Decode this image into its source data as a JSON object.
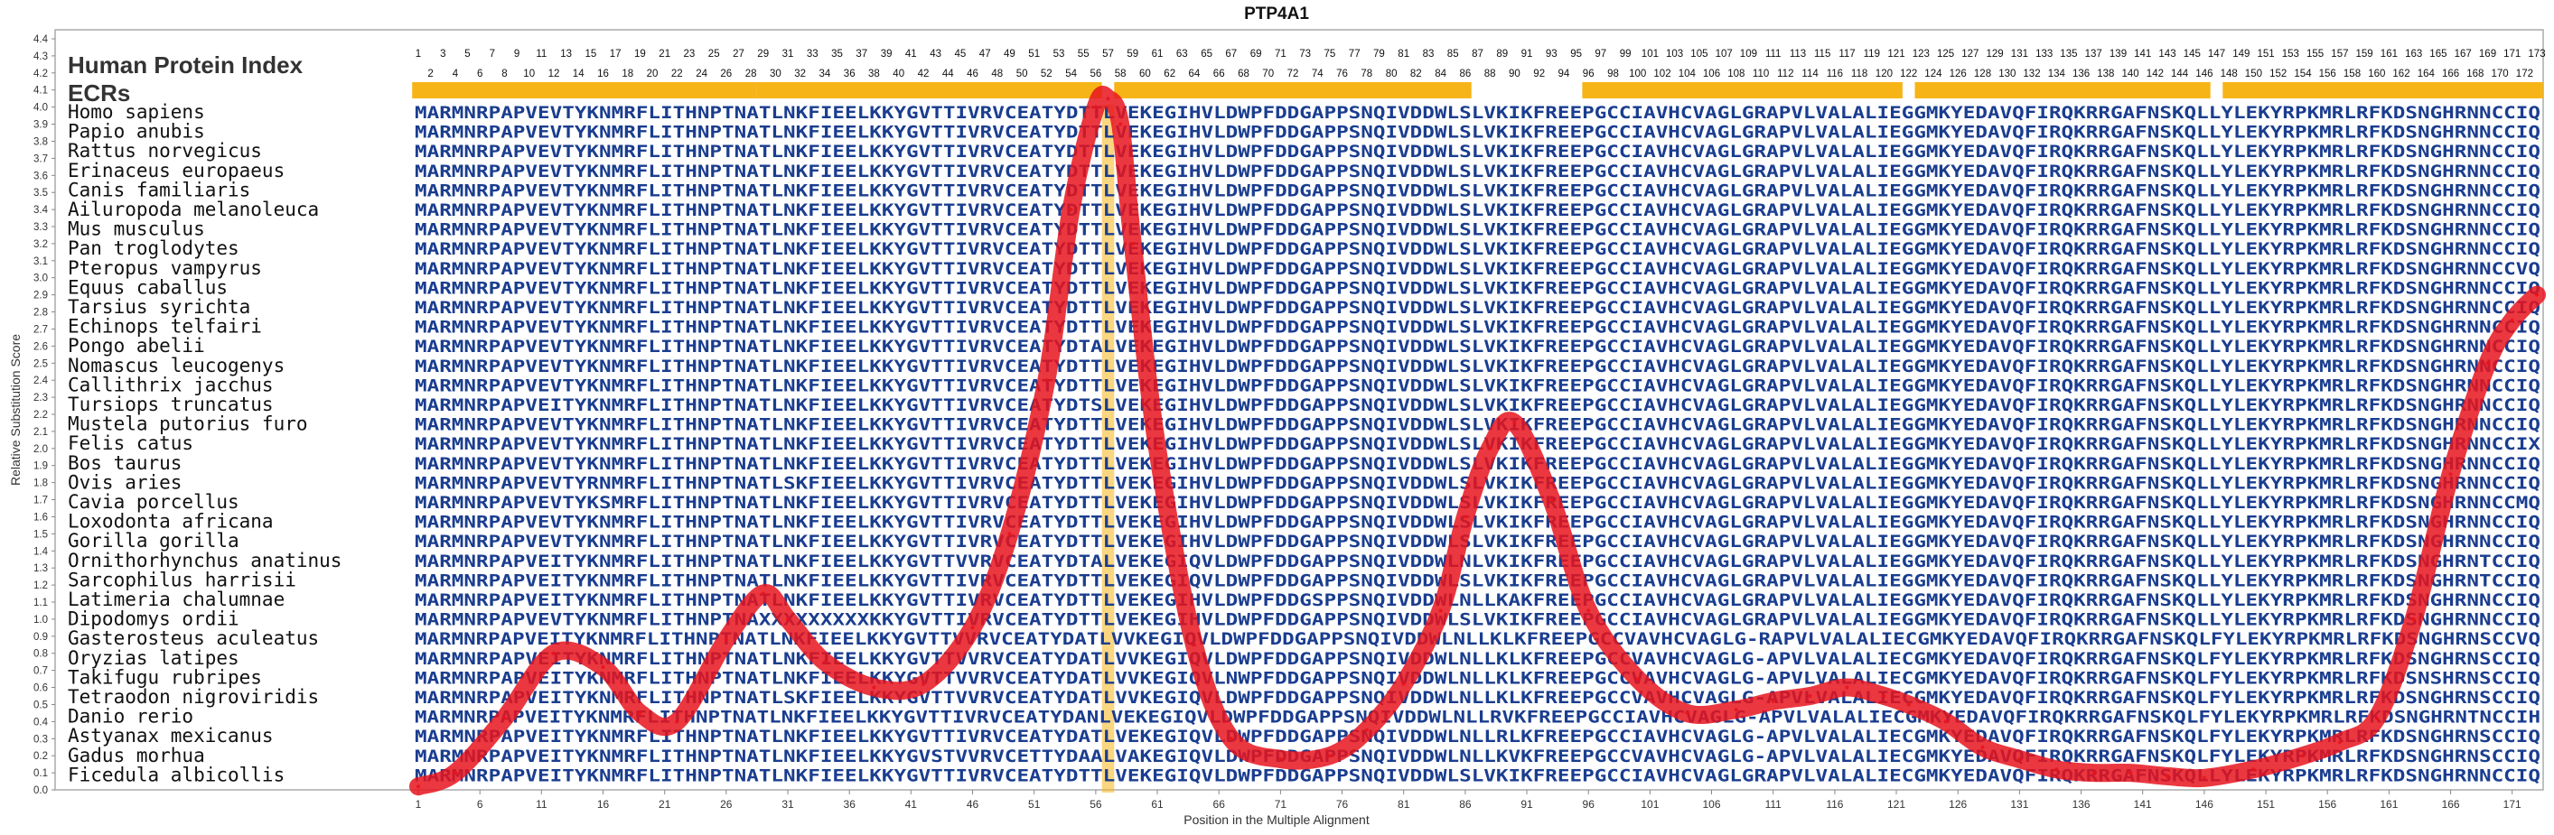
{
  "chart_data": {
    "type": "line",
    "title": "PTP4A1",
    "subtitle": "Human Protein Index",
    "ecr_label": "ECRs",
    "xlabel": "Position in the Multiple Alignment",
    "ylabel": "Relative Substitution Score",
    "xlim": [
      1,
      173
    ],
    "ylim": [
      0.0,
      4.4
    ],
    "y_ticks": [
      "0.0",
      "0.1",
      "0.2",
      "0.3",
      "0.4",
      "0.5",
      "0.6",
      "0.7",
      "0.8",
      "0.9",
      "1.0",
      "1.1",
      "1.2",
      "1.3",
      "1.4",
      "1.5",
      "1.6",
      "1.7",
      "1.8",
      "1.9",
      "2.0",
      "2.1",
      "2.2",
      "2.3",
      "2.4",
      "2.5",
      "2.6",
      "2.7",
      "2.8",
      "2.9",
      "3.0",
      "3.1",
      "3.2",
      "3.3",
      "3.4",
      "3.5",
      "3.6",
      "3.7",
      "3.8",
      "3.9",
      "4.0",
      "4.1",
      "4.2",
      "4.3",
      "4.4"
    ],
    "x_ticks": [
      "1",
      "6",
      "11",
      "16",
      "21",
      "26",
      "31",
      "36",
      "41",
      "46",
      "51",
      "56",
      "61",
      "66",
      "71",
      "76",
      "81",
      "86",
      "91",
      "96",
      "101",
      "106",
      "111",
      "116",
      "121",
      "126",
      "131",
      "136",
      "141",
      "146",
      "151",
      "156",
      "161",
      "166",
      "171"
    ],
    "ecr_segments": [
      [
        1,
        28
      ],
      [
        29,
        56
      ],
      [
        58,
        86
      ],
      [
        96,
        121
      ],
      [
        123,
        146
      ],
      [
        148,
        173
      ]
    ],
    "series": [
      {
        "color": "#e8141d",
        "x": [
          1,
          4,
          8,
          12,
          16,
          19,
          22,
          26,
          29,
          31,
          34,
          38,
          42,
          46,
          49,
          52,
          54,
          56,
          57,
          58,
          59,
          61,
          64,
          67,
          71,
          75,
          78,
          81,
          84,
          86,
          88,
          90,
          93,
          96,
          100,
          104,
          108,
          111,
          114,
          117,
          120,
          122,
          125,
          128,
          131,
          134,
          137,
          140,
          143,
          146,
          150,
          154,
          157,
          160,
          163,
          166,
          169,
          171,
          173
        ],
        "y": [
          0.02,
          0.1,
          0.42,
          0.8,
          0.72,
          0.45,
          0.4,
          0.88,
          1.15,
          1.0,
          0.75,
          0.6,
          0.62,
          0.95,
          1.5,
          2.4,
          3.4,
          4.0,
          4.05,
          3.9,
          3.2,
          2.0,
          0.85,
          0.3,
          0.18,
          0.2,
          0.35,
          0.62,
          1.05,
          1.6,
          2.0,
          2.15,
          1.7,
          1.05,
          0.65,
          0.45,
          0.47,
          0.52,
          0.55,
          0.6,
          0.55,
          0.5,
          0.4,
          0.25,
          0.18,
          0.12,
          0.1,
          0.1,
          0.08,
          0.07,
          0.12,
          0.2,
          0.28,
          0.42,
          1.0,
          1.85,
          2.5,
          2.75,
          2.9
        ]
      }
    ],
    "positions_top": [
      "1",
      "3",
      "5",
      "7",
      "9",
      "11",
      "13",
      "15",
      "17",
      "19",
      "21",
      "23",
      "25",
      "27",
      "29",
      "31",
      "33",
      "35",
      "37",
      "39",
      "41",
      "43",
      "45",
      "47",
      "49",
      "51",
      "53",
      "55",
      "57",
      "59",
      "61",
      "63",
      "65",
      "67",
      "69",
      "71",
      "73",
      "75",
      "77",
      "79",
      "81",
      "83",
      "85",
      "87",
      "89",
      "91",
      "93",
      "95",
      "97",
      "99",
      "101",
      "103",
      "105",
      "107",
      "109",
      "111",
      "113",
      "115",
      "117",
      "119",
      "121",
      "123",
      "125",
      "127",
      "129",
      "131",
      "133",
      "135",
      "137",
      "139",
      "141",
      "143",
      "145",
      "147",
      "149",
      "151",
      "153",
      "155",
      "157",
      "159",
      "161",
      "163",
      "165",
      "167",
      "169",
      "171",
      "173"
    ],
    "positions_bottom": [
      "2",
      "4",
      "6",
      "8",
      "10",
      "12",
      "14",
      "16",
      "18",
      "20",
      "22",
      "24",
      "26",
      "28",
      "30",
      "32",
      "34",
      "36",
      "38",
      "40",
      "42",
      "44",
      "46",
      "48",
      "50",
      "52",
      "54",
      "56",
      "58",
      "60",
      "62",
      "64",
      "66",
      "68",
      "70",
      "72",
      "74",
      "76",
      "78",
      "80",
      "82",
      "84",
      "86",
      "88",
      "90",
      "92",
      "94",
      "96",
      "98",
      "100",
      "102",
      "104",
      "106",
      "108",
      "110",
      "112",
      "114",
      "116",
      "118",
      "120",
      "122",
      "124",
      "126",
      "128",
      "130",
      "132",
      "134",
      "136",
      "138",
      "140",
      "142",
      "144",
      "146",
      "148",
      "150",
      "152",
      "154",
      "156",
      "158",
      "160",
      "162",
      "164",
      "166",
      "168",
      "170",
      "172"
    ],
    "alignment": [
      {
        "species": "Homo sapiens",
        "sequence": "MARMNRPAPVEVTYKNMRFLITHNPTNATLNKFIEELKKYGVTTIVRVCEATYDTTLVEKEGIHVLDWPFDDGAPPSNQIVDDWLSLVKIKFREEPGCCIAVHCVAGLGRAPVLVALALIEGGMKYEDAVQFIRQKRRGAFNSKQLLYLEKYRPKMRLRFKDSNGHRNNCCIQ"
      },
      {
        "species": "Papio anubis",
        "sequence": "MARMNRPAPVEVTYKNMRFLITHNPTNATLNKFIEELKKYGVTTIVRVCEATYDTTLVEKEGIHVLDWPFDDGAPPSNQIVDDWLSLVKIKFREEPGCCIAVHCVAGLGRAPVLVALALIEGGMKYEDAVQFIRQKRRGAFNSKQLLYLEKYRPKMRLRFKDSNGHRNNCCIQ"
      },
      {
        "species": "Rattus norvegicus",
        "sequence": "MARMNRPAPVEVTYKNMRFLITHNPTNATLNKFIEELKKYGVTTIVRVCEATYDTTLVEKEGIHVLDWPFDDGAPPSNQIVDDWLSLVKIKFREEPGCCIAVHCVAGLGRAPVLVALALIEGGMKYEDAVQFIRQKRRGAFNSKQLLYLEKYRPKMRLRFKDSNGHRNNCCIQ"
      },
      {
        "species": "Erinaceus europaeus",
        "sequence": "MARMNRPAPVEVTYKNMRFLITHNPTNATLNKFIEELKKYGVTTIVRVCEATYDTTLVEKEGIHVLDWPFDDGAPPSNQIVDDWLSLVKIKFREEPGCCIAVHCVAGLGRAPVLVALALIEGGMKYEDAVQFIRQKRRGAFNSKQLLYLEKYRPKMRLRFKDSNGHRNNCCIQ"
      },
      {
        "species": "Canis familiaris",
        "sequence": "MARMNRPAPVEVTYKNMRFLITHNPTNATLNKFIEELKKYGVTTIVRVCEATYDTTLVEKEGIHVLDWPFDDGAPPSNQIVDDWLSLVKIKFREEPGCCIAVHCVAGLGRAPVLVALALIEGGMKYEDAVQFIRQKRRGAFNSKQLLYLEKYRPKMRLRFKDSNGHRNNCCIQ"
      },
      {
        "species": "Ailuropoda melanoleuca",
        "sequence": "MARMNRPAPVEVTYKNMRFLITHNPTNATLNKFIEELKKYGVTTIVRVCEATYDTTLVEKEGIHVLDWPFDDGAPPSNQIVDDWLSLVKIKFREEPGCCIAVHCVAGLGRAPVLVALALIEGGMKYEDAVQFIRQKRRGAFNSKQLLYLEKYRPKMRLRFKDSNGHRNNCCIQ"
      },
      {
        "species": "Mus musculus",
        "sequence": "MARMNRPAPVEVTYKNMRFLITHNPTNATLNKFIEELKKYGVTTIVRVCEATYDTTLVEKEGIHVLDWPFDDGAPPSNQIVDDWLSLVKIKFREEPGCCIAVHCVAGLGRAPVLVALALIEGGMKYEDAVQFIRQKRRGAFNSKQLLYLEKYRPKMRLRFKDSNGHRNNCCIQ"
      },
      {
        "species": "Pan troglodytes",
        "sequence": "MARMNRPAPVEVTYKNMRFLITHNPTNATLNKFIEELKKYGVTTIVRVCEATYDTTLVEKEGIHVLDWPFDDGAPPSNQIVDDWLSLVKIKFREEPGCCIAVHCVAGLGRAPVLVALALIEGGMKYEDAVQFIRQKRRGAFNSKQLLYLEKYRPKMRLRFKDSNGHRNNCCIQ"
      },
      {
        "species": "Pteropus vampyrus",
        "sequence": "MARMNRPAPVEVTYKNMRFLITHNPTNATLNKFIEELKKYGVTTIVRVCEATYDTTLVEKEGIHVLDWPFDDGAPPSNQIVDDWLSLVKIKFREEPGCCIAVHCVAGLGRAPVLVALALIEGGMKYEDAVQFIRQKRRGAFNSKQLLYLEKYRPKMRLRFKDSNGHRNNCCVQ"
      },
      {
        "species": "Equus caballus",
        "sequence": "MARMNRPAPVEVTYKNMRFLITHNPTNATLNKFIEELKKYGVTTIVRVCEATYDTTLVEKEGIHVLDWPFDDGAPPSNQIVDDWLSLVKIKFREEPGCCIAVHCVAGLGRAPVLVALALIEGGMKYEDAVQFIRQKRRGAFNSKQLLYLEKYRPKMRLRFKDSNGHRNNCCIQ"
      },
      {
        "species": "Tarsius syrichta",
        "sequence": "MARMNRPAPVEVTYKNMRFLITHNPTNATLNKFIEELKKYGVTTIVRVCEATYDTTLVEKEGIHVLDWPFDDGAPPSNQIVDDWLSLVKIKFREEPGCCIAVHCVAGLGRAPVLVALALIEGGMKYEDAVQFIRQKRRGAFNSKQLLYLEKYRPKMRLRFKDSNGHRNNCCIQ"
      },
      {
        "species": "Echinops telfairi",
        "sequence": "MARMNRPAPVEVTYKNMRFLITHNPTNATLNKFIEELKKYGVTTIVRVCEATYDTTLVEKEGIHVLDWPFDDGAPPSNQIVDDWLSLVKIKFREEPGCCIAVHCVAGLGRAPVLVALALIEGGMKYEDAVQFIRQKRRGAFNSKQLLYLEKYRPKMRLRFKDSNGHRNNCCIQ"
      },
      {
        "species": "Pongo abelii",
        "sequence": "MARMNRPAPVEVTYKNMRFLITHNPTNATLNKFIEELKKYGVTTIVRVCEATYDTALVEKEGIHVLDWPFDDGAPPSNQIVDDWLSLVKIKFREEPGCCIAVHCVAGLGRAPVLVALALIEGGMKYEDAVQFIRQKRRGAFNSKQLLYLEKYRPKMRLRFKDSNGHRNNCCIQ"
      },
      {
        "species": "Nomascus leucogenys",
        "sequence": "MARMNRPAPVEVTYKNMRFLITHNPTNATLNKFIEELKKYGVTTIVRVCEATYDTTLVEKEGIHVLDWPFDDGAPPSNQIVDDWLSLVKIKFREEPGCCIAVHCVAGLGRAPVLVALALIEGGMKYEDAVQFIRQKRRGAFNSKQLLYLEKYRPKMRLRFKDSNGHRNNCCIQ"
      },
      {
        "species": "Callithrix jacchus",
        "sequence": "MARMNRPAPVEVTYKNMRFLITHNPTNATLNKFIEELKKYGVTTIVRVCEATYDTTLVEKEGIHVLDWPFDDGAPPSNQIVDDWLSLVKIKFREEPGCCIAVHCVAGLGRAPVLVALALIEGGMKYEDAVQFIRQKRRGAFNSKQLLYLEKYRPKMRLRFKDSNGHRNNCCIQ"
      },
      {
        "species": "Tursiops truncatus",
        "sequence": "MARMNRPAPVEITYKNMRFLITHNPTNATLNKFIEELKKYGVTTIVRVCEATYDTSLVEKEGIHVLDWPFDDGAPPSNQIVDDWLSLVKIKFREEPGCCIAVHCVAGLGRAPVLVALALIEGGMKYEDAVQFIRQKRRGAFNSKQLLYLEKYRPKMRLRFKDSNGHRNNCCIQ"
      },
      {
        "species": "Mustela putorius furo",
        "sequence": "MARMNRPAPVEVTYKNMRFLITHNPTNATLNKFIEELKKYGVTTIVRVCEATYDTTLVEKEGIHVLDWPFDDGAPPSNQIVDDWLSLVKIKFREEPGCCIAVHCVAGLGRAPVLVALALIEGGMKYEDAVQFIRQKRRGAFNSKQLLYLEKYRPKMRLRFKDSNGHRNNCCIQ"
      },
      {
        "species": "Felis catus",
        "sequence": "MARMNRPAPVEVTYKNMRFLITHNPTNATLNKFIEELKKYGVTTIVRVCEATYDTTLVEKEGIHVLDWPFDDGAPPSNQIVDDWLSLVKIKFREEPGCCIAVHCVAGLGRAPVLVALALIEGGMKYEDAVQFIRQKRRGAFNSKQLLYLEKYRPKMRLRFKDSNGHRNNCCIX"
      },
      {
        "species": "Bos taurus",
        "sequence": "MARMNRPAPVEVTYKNMRFLITHNPTNATLNKFIEELKKYGVTTIVRVCEATYDTTLVEKEGIHVLDWPFDDGAPPSNQIVDDWLSLVKIKFREEPGCCIAVHCVAGLGRAPVLVALALIEGGMKYEDAVQFIRQKRRGAFNSKQLLYLEKYRPKMRLRFKDSNGHRNNCCIQ"
      },
      {
        "species": "Ovis aries",
        "sequence": "MARMNRPAPVEVTYRNMRFLITHNPTNATLSKFIEELKKYGVTTIVRVCEATYDTTLVEKEGIHVLDWPFDDGAPPSNQIVDDWLSLVKIKFREEPGCCIAVHCVAGLGRAPVLVALALIEGGMKYEDAVQFIRQKRRGAFNSKQLLYLEKYRPKMRLRFKDSNGHRNNCCIQ"
      },
      {
        "species": "Cavia porcellus",
        "sequence": "MARMNRPAPVEVTYKSMRFLITHNPTNATLNKFIEELKKYGVTTIVRVCEATYDTTLVEKEGIHVLDWPFDDGAPPSNQIVDDWLSLVKIKFREEPGCCIAVHCVAGLGRAPVLVALALIEGGMKYEDAVQFIRQKRRGAFNSKQLLYLEKYRPKMRLRFKDSNGHRNNCCMQ"
      },
      {
        "species": "Loxodonta africana",
        "sequence": "MARMNRPAPVEVTYKNMRFLITHNPTNATLNKFIEELKKYGVTTIVRVCEATYDTTLVEKEGIHVLDWPFDDGAPPSNQIVDDWLSLVKIKFREEPGCCIAVHCVAGLGRAPVLVALALIEGGMKYEDAVQFIRQKRRGAFNSKQLLYLEKYRPKMRLRFKDSNGHRNNCCIQ"
      },
      {
        "species": "Gorilla gorilla",
        "sequence": "MARMNRPAPVEVTYKNMRFLITHNPTNATLNKFIEELKKYGVTTIVRVCEATYDTTLVEKEGIHVLDWPFDDGAPPSNQIVDDWLSLVKIKFREEPGCCIAVHCVAGLGRAPVLVALALIEGGMKYEDAVQFIRQKRRGAFNSKQLLYLEKYRPKMRLRFKDSNGHRNNCCIQ"
      },
      {
        "species": "Ornithorhynchus anatinus",
        "sequence": "MARMNRPAPVEITYKNMRFLITHNPTNATLNKFIEELKKYGVTTVVRVCEATYDTALVEKEGIQVLDWPFDDGAPPSNQIVDDWLNLVKIKFREEPGCCIAVHCVAGLGRAPVLVALALIEGGMKYEDAVQFIRQKRRGAFNSKQLLYLEKYRPKMRLRFKDSNGHRNTCCIQ"
      },
      {
        "species": "Sarcophilus harrisii",
        "sequence": "MARMNRPAPVEITYKNMRFLITHNPTNATLNKFIEELKKYGVTTIVRVCEATYDTTLVEKEGIQVLDWPFDDGAPPSNQIVDDWLSLVKIKFREEPGCCIAVHCVAGLGRAPVLVALALIEGGMKYEDAVQFIRQKRRGAFNSKQLLYLEKYRPKMRLRFKDSNGHRNTCCIQ"
      },
      {
        "species": "Latimeria chalumnae",
        "sequence": "MARMNRPAPVEITYKNMRFLITHNPTNATLNKFIEELKKYGVTTIVRVCEATYDTTLVEKEGIHVLDWPFDDGSPPSNQIVDDWLNLLKAKFREEPGCCIAVHCVAGLGRAPVLVALALIEGGMKYEDAVQFIRQKRRGAFNSKQLLYLEKYRPKMRLRFKDSNGHRNNCCIQ"
      },
      {
        "species": "Dipodomys ordii",
        "sequence": "MARMNRPAPVEVTYKNMRFLITHNPTNAXXXXXXXXXKKYGVTTIVRVCEATYDTTLVEKEGIHVLDWPFDDGAPPSNQIVDDWLSLVKIKFREEPGCCIAVHCVAGLGRAPVLVALALIEGGMKYEDAVQFIRQKRRGAFNSKQLLYLEKYRPKMRLRFKDSNGHRNNCCIQ"
      },
      {
        "species": "Gasterosteus aculeatus",
        "sequence": "MARMNRPAPVEITYKNMRFLITHNPTNATLNKFIEELKKYGVTTVVRVCEATYDATLVVKEGIQVLDWPFDDGAPPSNQIVDDWLNLLKLKFREEPGCCVAVHCVAGLG-RAPVLVALALIECGMKYEDAVQFIRQKRRGAFNSKQLFYLEKYRPKMRLRFKDSNGHRNSCCVQ"
      },
      {
        "species": "Oryzias latipes",
        "sequence": "MARMNRPAPVEITYKNMRFLITHNPTNATLNKFIEELKKYGVTTVVRVCEATYDATLVVKEGIQVLDWPFDDGAPPSNQIVDDWLNLLKLKFREEPGCCVAVHCVAGLG-APVLVALALIECGMKYEDAVQFIRQKRRGAFNSKQLFYLEKYRPKMRLRFKDSNGHRNSCCIQ"
      },
      {
        "species": "Takifugu rubripes",
        "sequence": "MARMNRPAPVEITYKNMRFLITHNPTNATLNKFIEELKKYGVTTVVRVCEATYDATLVVKEGIQVLNWPFDDGAPPSNQIVDDWLNLLKLKFREEPGCCVAVHCVAGLG-APVLVALALIECGMKYEDAVQFIRQKRRGAFNSKQLFYLEKYRPKMRLRFKDSNSHRNSCCIQ"
      },
      {
        "species": "Tetraodon nigroviridis",
        "sequence": "MARMNRPAPVEITYKNMRFLITHNPTNATLSKFIEELKKYGVTTVVRVCEATYDATLVVKEGIQVLDWPFDDGAPPSNQIVDDWLNLLKLKFREEPGCCVAVHCVAGLG-APVLVALALIECGMKYEDAVQFIRQKRRGAFNSKQLFYLEKYRPKMRLRFKDSNGHRNSCCIQ"
      },
      {
        "species": "Danio rerio",
        "sequence": "MARMNRPAPVEITYKNMRFLITHNPTNATLNKFIEELKKYGVTTIVRVCEATYDANLVEKEGIQVLDWPFDDGAPPSNQIVDDWLNLLRVKFREEPGCCIAVHCVAGLG-APVLVALALIECGMKYEDAVQFIRQKRRGAFNSKQLFYLEKYRPKMRLRFKDSNGHRNTNCCIH"
      },
      {
        "species": "Astyanax mexicanus",
        "sequence": "MARMNRPAPVEITYKNMRFLITHNPTNATLNKFIEELKKYGVTTIVRVCEATYDATLVEKEGIQVLDWPFDDGAPPSNQIVDDWLNLLRLKFREEPGCCIAVHCVAGLG-APVLVALALIECGMKYEDAVQFIRQKRRGAFNSKQLFYLEKYRPKMRLRFKDSNGHRNSCCIQ"
      },
      {
        "species": "Gadus morhua",
        "sequence": "MARMNRPAPVEITYKNMRFLITHNPTNATLNKFIEELKKYGVSTVVRVCETTYDAALVAKEGIQVLDWPFDDGAPPSNQIVDDWLNLLKVKFREEPGCCVAVHCVAGLG-APVLVALALIECGMKYEDAVQFIRQKRRGAFNSKQLFYLEKYRPKMRLRFKDSNGHRNSCCIQ"
      },
      {
        "species": "Ficedula albicollis",
        "sequence": "MARMNRPAPVEITYKNMRFLITHNPTNATLNKFIEELKKYGVTTIVRVCEATYDTTLVEKEGIQVLDWPFDDGAPPSNQIVDDWLSLVKIKFREEPGCCIAVHCVAGLGRAPVLVALALIECGMKYEDAVQFIRQKRRGAFNSKQLLYLEKYRPKMRLRFKDSNGHRNNCCIQ"
      }
    ],
    "colors": {
      "ecr_bar": "#f7b417",
      "score_line": "#e8141d",
      "sequence_text": "#1a3d8f",
      "highlight_column": "#f7b417",
      "plot_border": "#aaaaaa"
    },
    "grid": false,
    "legend": "none"
  }
}
